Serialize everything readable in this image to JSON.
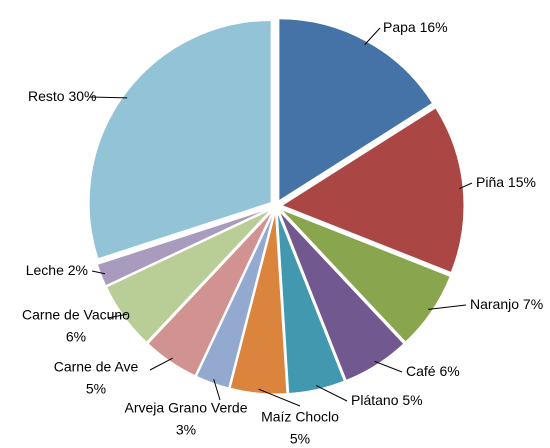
{
  "chart_data": {
    "type": "pie",
    "categories": [
      "Papa",
      "Piña",
      "Naranjo",
      "Café",
      "Plátano",
      "Maíz Choclo",
      "Arveja Grano Verde",
      "Carne de Ave",
      "Carne de Vacuno",
      "Leche",
      "Resto"
    ],
    "values": [
      16,
      15,
      7,
      6,
      5,
      5,
      3,
      5,
      6,
      2,
      30
    ],
    "value_labels": [
      "16%",
      "15%",
      "7%",
      "6%",
      "5%",
      "5%",
      "3%",
      "5%",
      "6%",
      "2%",
      "30%"
    ],
    "colors": [
      "#4572a7",
      "#aa4643",
      "#89a54e",
      "#71588f",
      "#4198af",
      "#db843d",
      "#93a9cf",
      "#d19392",
      "#b9cd96",
      "#a99bbd",
      "#92c3d6"
    ]
  }
}
